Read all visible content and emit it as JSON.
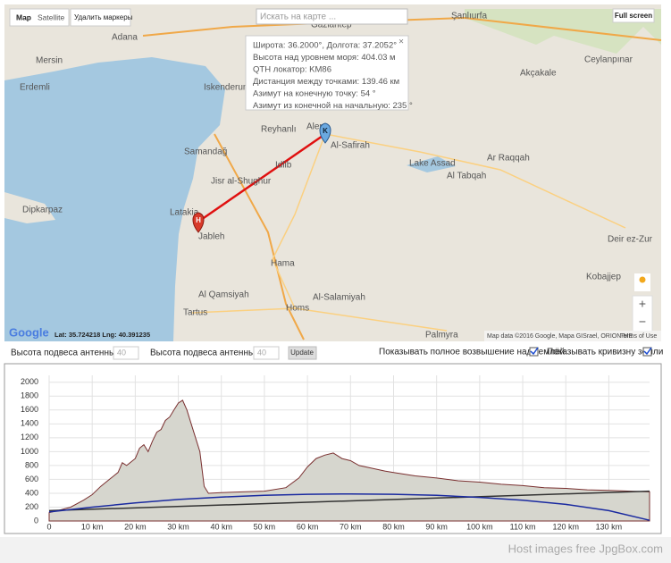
{
  "map": {
    "controls": {
      "map": "Map",
      "satellite": "Satellite",
      "delete_markers": "Удалить маркеры",
      "search": "Искать на карте ...",
      "fullscreen": "Full screen",
      "zoom_in": "+",
      "zoom_out": "−"
    },
    "popup": [
      "Широта: 36.2000°, Долгота: 37.2052°",
      "Высота над уровнем моря: 404.03 м",
      "QTH локатор: KM86",
      "Дистанция между точками: 139.46 км",
      "Азимут на конечную точку: 54 °",
      "Азимут из конечной на начальную: 235 °"
    ],
    "places": [
      "Gaziantep",
      "Şanlıurfa",
      "Adana",
      "Mersin",
      "Erdemli",
      "Iskenderun",
      "Reyhanlı",
      "Alep",
      "Al-Safirah",
      "Idlib",
      "Samandağ",
      "Jisr al-Shughur",
      "Latakia",
      "Jableh",
      "Hama",
      "Homs",
      "Al-Salamiyah",
      "Tartus",
      "Al Qamsiyah",
      "Lake Assad",
      "Al Tabqah",
      "Ar Raqqah",
      "Akçakale",
      "Ceylanpınar",
      "Deir ez-Zur",
      "Kobajjep",
      "Palmyra",
      "Dipkarpaz"
    ],
    "marker_a": "H",
    "marker_b": "K",
    "logo": "Google",
    "coords": "Lat: 35.724218 Lng: 40.391235",
    "attribution": "Map data ©2016 Google, Mapa GISrael, ORION-ME",
    "terms": "Terms of Use"
  },
  "controls": {
    "antenna_a_label": "Высота подвеса антенны A:",
    "antenna_a_value": "40",
    "antenna_b_label": "Высота подвеса антенны B:",
    "antenna_b_value": "40",
    "update": "Update",
    "show_full_elevation": "Показывать полное возвышение над землёй",
    "show_curvature": "Показывать кривизну земли"
  },
  "chart_data": {
    "type": "area",
    "xlim": [
      0,
      139.46
    ],
    "ylim": [
      0,
      2100
    ],
    "xticks": [
      0,
      {
        "value": 10,
        "label": "10 km"
      },
      {
        "value": 20,
        "label": "20 km"
      },
      {
        "value": 30,
        "label": "30 km"
      },
      {
        "value": 40,
        "label": "40 km"
      },
      {
        "value": 50,
        "label": "50 km"
      },
      {
        "value": 60,
        "label": "60 km"
      },
      {
        "value": 70,
        "label": "70 km"
      },
      {
        "value": 80,
        "label": "80 km"
      },
      {
        "value": 90,
        "label": "90 km"
      },
      {
        "value": 100,
        "label": "100 km"
      },
      {
        "value": 110,
        "label": "110 km"
      },
      {
        "value": 120,
        "label": "120 km"
      },
      {
        "value": 130,
        "label": "130 km"
      }
    ],
    "yticks": [
      0,
      200,
      400,
      600,
      800,
      1000,
      1200,
      1400,
      1600,
      1800,
      2000
    ],
    "grid": true,
    "series": [
      {
        "color": "#7a3030",
        "fill": "#d6d6ce",
        "x": [
          0,
          2,
          5,
          8,
          10,
          12,
          14,
          16,
          17,
          18,
          20,
          21,
          22,
          23,
          24,
          25,
          26,
          27,
          28,
          29,
          30,
          31,
          32,
          33,
          35,
          36,
          37,
          40,
          45,
          50,
          55,
          58,
          60,
          62,
          64,
          66,
          68,
          70,
          72,
          75,
          78,
          80,
          85,
          90,
          95,
          100,
          105,
          110,
          115,
          120,
          125,
          130,
          135,
          139.46
        ],
        "values": [
          120,
          150,
          200,
          300,
          380,
          500,
          600,
          700,
          840,
          800,
          900,
          1050,
          1100,
          1000,
          1150,
          1280,
          1320,
          1450,
          1500,
          1600,
          1700,
          1740,
          1600,
          1400,
          1000,
          500,
          400,
          410,
          420,
          430,
          480,
          620,
          780,
          900,
          950,
          980,
          900,
          870,
          800,
          760,
          720,
          700,
          650,
          620,
          580,
          560,
          530,
          510,
          480,
          470,
          450,
          440,
          430,
          420
        ]
      },
      {
        "color": "#333333",
        "x": [
          0,
          139.46
        ],
        "values": [
          150,
          430
        ]
      },
      {
        "color": "#1a2aa0",
        "x": [
          0,
          10,
          20,
          30,
          40,
          50,
          60,
          70,
          80,
          90,
          100,
          110,
          120,
          130,
          139.46
        ],
        "values": [
          130,
          200,
          260,
          310,
          345,
          370,
          385,
          390,
          385,
          370,
          340,
          300,
          240,
          150,
          10
        ]
      }
    ]
  },
  "footer": "Host images free JpgBox.com"
}
